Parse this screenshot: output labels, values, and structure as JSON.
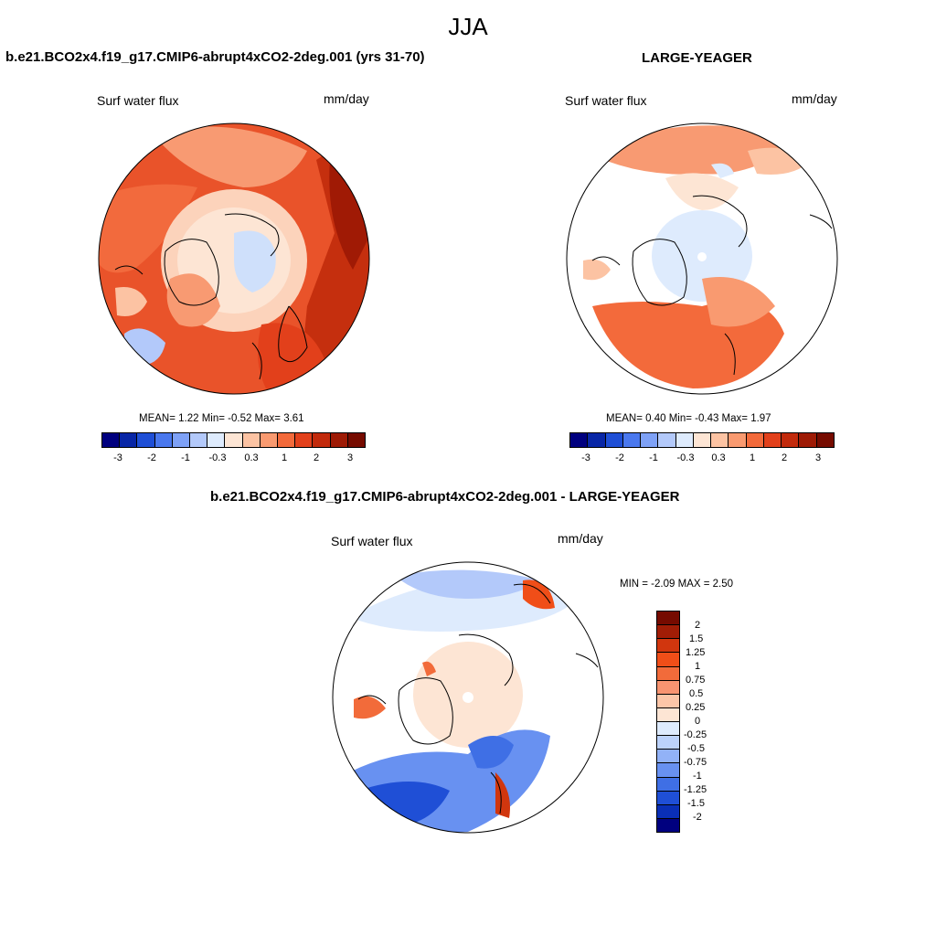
{
  "figure": {
    "title": "JJA"
  },
  "panels": [
    {
      "id": "left",
      "title": "b.e21.BCO2x4.f19_g17.CMIP6-abrupt4xCO2-2deg.001 (yrs 31-70)",
      "variable": "Surf water flux",
      "units": "mm/day",
      "stats": "MEAN=   1.22  Min=  -0.52  Max=   3.61",
      "colorbar_ticks": [
        "-3",
        "-2",
        "-1",
        "-0.3",
        "0.3",
        "1",
        "2",
        "3"
      ]
    },
    {
      "id": "right",
      "title": "LARGE-YEAGER",
      "variable": "Surf water flux",
      "units": "mm/day",
      "stats": "MEAN=   0.40  Min=  -0.43  Max=   1.97",
      "colorbar_ticks": [
        "-3",
        "-2",
        "-1",
        "-0.3",
        "0.3",
        "1",
        "2",
        "3"
      ]
    },
    {
      "id": "diff",
      "title": "b.e21.BCO2x4.f19_g17.CMIP6-abrupt4xCO2-2deg.001 - LARGE-YEAGER",
      "variable": "Surf water flux",
      "units": "mm/day",
      "stats": "MIN =  -2.09 MAX =   2.50",
      "colorbar_ticks": [
        "2",
        "1.5",
        "1.25",
        "1",
        "0.75",
        "0.5",
        "0.25",
        "0",
        "-0.25",
        "-0.5",
        "-0.75",
        "-1",
        "-1.25",
        "-1.5",
        "-2"
      ]
    }
  ],
  "colors": {
    "horizontal_colorbar": [
      "#00007f",
      "#0826a6",
      "#1f4fd6",
      "#4a78ee",
      "#7ea1f6",
      "#b3c9fa",
      "#deebfd",
      "#fde5d4",
      "#fcc3a3",
      "#f99a70",
      "#f36a3b",
      "#e2401b",
      "#c22a0c",
      "#9e1a05",
      "#760b00"
    ],
    "vertical_colorbar": [
      "#760b00",
      "#a11d06",
      "#d1360e",
      "#f04e18",
      "#f26b3a",
      "#f89471",
      "#fcc6a8",
      "#fde5d4",
      "#deebfd",
      "#bcd2fb",
      "#92b2f7",
      "#6891f1",
      "#3f6fe5",
      "#1f4fd6",
      "#0a2fb6",
      "#00007f"
    ]
  }
}
